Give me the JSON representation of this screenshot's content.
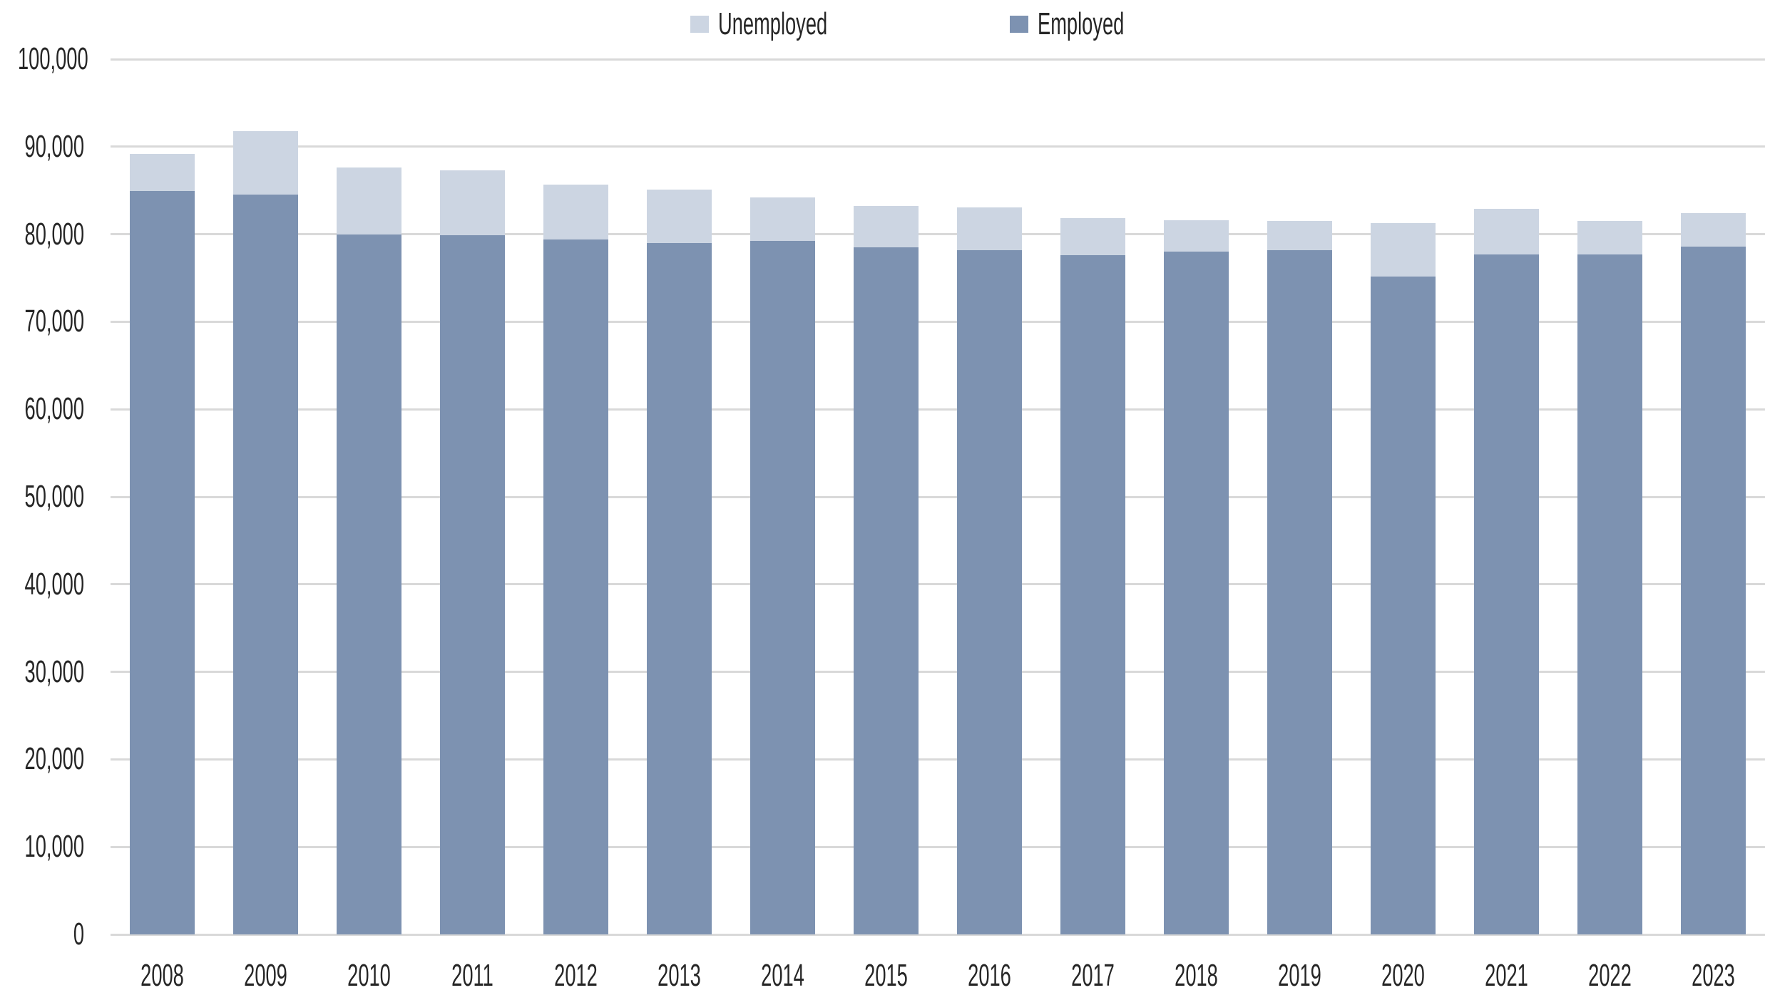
{
  "chart_data": {
    "type": "bar",
    "stacked": true,
    "title": "",
    "xlabel": "",
    "ylabel": "",
    "categories": [
      "2008",
      "2009",
      "2010",
      "2011",
      "2012",
      "2013",
      "2014",
      "2015",
      "2016",
      "2017",
      "2018",
      "2019",
      "2020",
      "2021",
      "2022",
      "2023"
    ],
    "series": [
      {
        "name": "Unemployed",
        "color": "#CCD5E2",
        "values": [
          4300,
          7300,
          7600,
          7400,
          6300,
          6100,
          5000,
          4700,
          4900,
          4200,
          3600,
          3300,
          6100,
          5200,
          3800,
          3800
        ]
      },
      {
        "name": "Employed",
        "color": "#7D92B1",
        "values": [
          84900,
          84500,
          80000,
          79900,
          79400,
          79000,
          79200,
          78500,
          78200,
          77600,
          78000,
          78200,
          75200,
          77700,
          77700,
          78600
        ]
      }
    ],
    "totals": [
      89200,
      91800,
      87600,
      87300,
      85700,
      85100,
      84200,
      83200,
      83100,
      81800,
      81600,
      81500,
      81300,
      82900,
      81500,
      82400
    ],
    "ylim": [
      0,
      100000
    ],
    "ytick_step": 10000,
    "ytick_labels": [
      "0",
      "10,000",
      "20,000",
      "30,000",
      "40,000",
      "50,000",
      "60,000",
      "70,000",
      "80,000",
      "90,000",
      "100,000"
    ],
    "grid": true,
    "legend_position": "top-center"
  },
  "colors": {
    "gridline": "#D9D9D9",
    "axis_text": "#262626",
    "background": "#FFFFFF"
  }
}
